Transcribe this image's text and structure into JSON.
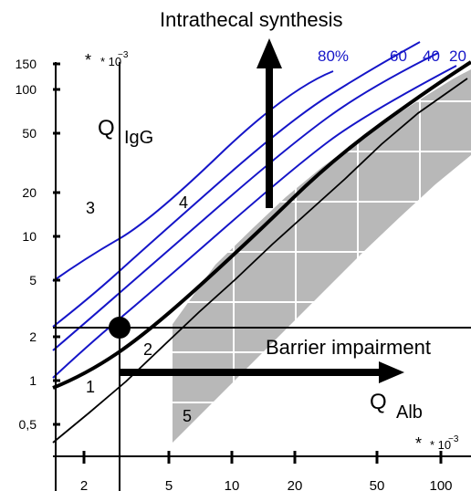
{
  "title": "Intrathecal synthesis",
  "y_axis": {
    "scale_note": "* 10",
    "scale_exp": "−3",
    "label_main": "Q",
    "label_sub": "IgG",
    "ticks": [
      "150",
      "100",
      "50",
      "20",
      "10",
      "5",
      "2",
      "1",
      "0,5"
    ]
  },
  "x_axis": {
    "scale_note": "* 10",
    "scale_exp": "−3",
    "label_main": "Q",
    "label_sub": "Alb",
    "ticks": [
      "2",
      "5",
      "10",
      "20",
      "50",
      "100"
    ]
  },
  "isolines": [
    "80%",
    "60",
    "40",
    "20"
  ],
  "annotations": {
    "barrier": "Barrier impairment"
  },
  "regions": [
    "1",
    "2",
    "3",
    "4",
    "5"
  ],
  "colors": {
    "isoline": "#1515c8",
    "hatch_fill": "#b8b8b8",
    "line": "#000000"
  }
}
